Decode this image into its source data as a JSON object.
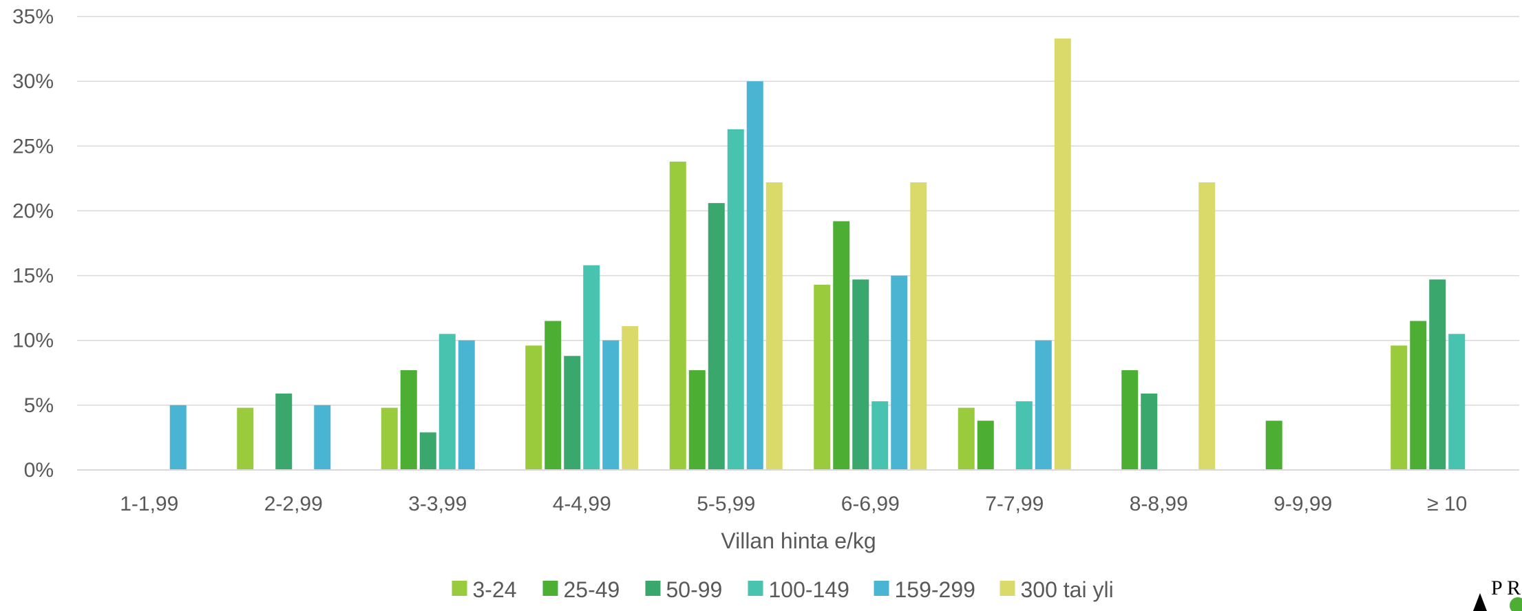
{
  "chart_data": {
    "type": "bar",
    "title": "",
    "xlabel": "Villan hinta e/kg",
    "ylabel": "",
    "ylim": [
      0,
      35
    ],
    "y_ticks": [
      "0%",
      "5%",
      "10%",
      "15%",
      "20%",
      "25%",
      "30%",
      "35%"
    ],
    "y_unit": "%",
    "grid": true,
    "legend_position": "bottom",
    "categories": [
      "1-1,99",
      "2-2,99",
      "3-3,99",
      "4-4,99",
      "5-5,99",
      "6-6,99",
      "7-7,99",
      "8-8,99",
      "9-9,99",
      "≥ 10"
    ],
    "series": [
      {
        "name": "3-24",
        "color": "#9acb3c",
        "values": [
          0,
          4.8,
          4.8,
          9.6,
          23.8,
          14.3,
          4.8,
          0,
          0,
          9.6
        ]
      },
      {
        "name": "25-49",
        "color": "#4caf34",
        "values": [
          0,
          0,
          7.7,
          11.5,
          7.7,
          19.2,
          3.8,
          7.7,
          3.8,
          11.5
        ]
      },
      {
        "name": "50-99",
        "color": "#3aa76d",
        "values": [
          0,
          5.9,
          2.9,
          8.8,
          20.6,
          14.7,
          0,
          5.9,
          0,
          14.7
        ]
      },
      {
        "name": "100-149",
        "color": "#47c3b0",
        "values": [
          0,
          0,
          10.5,
          15.8,
          26.3,
          5.3,
          5.3,
          0,
          0,
          10.5
        ]
      },
      {
        "name": "159-299",
        "color": "#4ab4d3",
        "values": [
          5.0,
          5.0,
          10.0,
          10.0,
          30.0,
          15.0,
          10.0,
          0,
          0,
          0
        ]
      },
      {
        "name": "300 tai yli",
        "color": "#dada6a",
        "values": [
          0,
          0,
          0,
          11.1,
          22.2,
          22.2,
          33.3,
          22.2,
          0,
          0
        ]
      }
    ]
  },
  "logo": {
    "text": "P R"
  }
}
